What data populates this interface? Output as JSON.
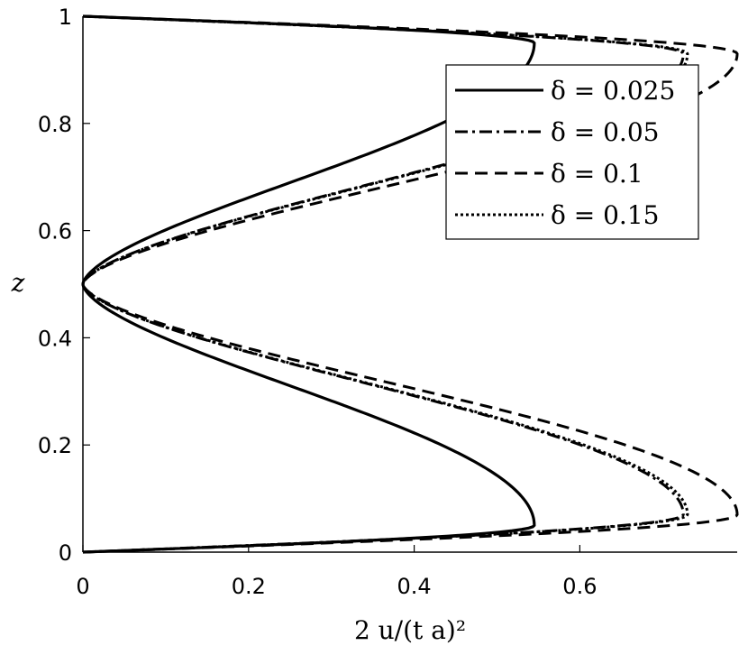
{
  "chart_data": {
    "type": "line",
    "title": "",
    "xlabel": "2 u/(t a)²",
    "ylabel": "z",
    "xlim": [
      0,
      0.79
    ],
    "ylim": [
      0,
      1
    ],
    "xticks": [
      "0",
      "0.2",
      "0.4",
      "0.6"
    ],
    "xtick_values": [
      0,
      0.2,
      0.4,
      0.6
    ],
    "yticks": [
      "0",
      "0.2",
      "0.4",
      "0.6",
      "0.8",
      "1"
    ],
    "ytick_values": [
      0,
      0.2,
      0.4,
      0.6,
      0.8,
      1
    ],
    "grid": false,
    "legend_position": "top-right",
    "series": [
      {
        "name": "δ = 0.025",
        "dash": "solid",
        "z_peak": 0.05,
        "x_peak": 0.545,
        "x_mid": 0.0
      },
      {
        "name": "δ = 0.05",
        "dash": "dashdot",
        "z_peak": 0.07,
        "x_peak": 0.725,
        "x_mid": 0.0
      },
      {
        "name": "δ = 0.1",
        "dash": "dashed",
        "z_peak": 0.07,
        "x_peak": 0.79,
        "x_mid": 0.0
      },
      {
        "name": "δ = 0.15",
        "dash": "dotted",
        "z_peak": 0.07,
        "x_peak": 0.73,
        "x_mid": 0.0
      }
    ]
  }
}
